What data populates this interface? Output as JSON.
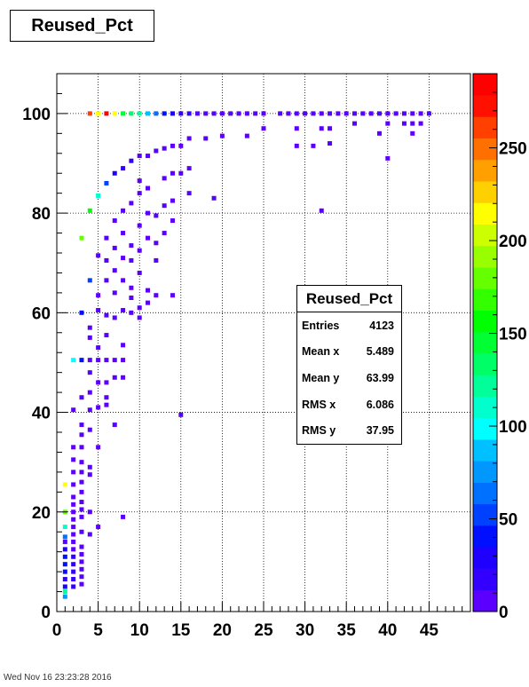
{
  "chart_data": {
    "type": "heatmap",
    "title": "Reused_Pct",
    "xlabel": "",
    "ylabel": "",
    "xlim": [
      0,
      50
    ],
    "ylim": [
      0,
      108
    ],
    "zlim": [
      0,
      290
    ],
    "grid": true,
    "x_ticks": [
      0,
      5,
      10,
      15,
      20,
      25,
      30,
      35,
      40,
      45
    ],
    "y_ticks": [
      0,
      20,
      40,
      60,
      80,
      100
    ],
    "z_ticks": [
      0,
      50,
      100,
      150,
      200,
      250
    ],
    "cells": [
      [
        1,
        3,
        80
      ],
      [
        1,
        4,
        120
      ],
      [
        1,
        5,
        30
      ],
      [
        1,
        6.5,
        20
      ],
      [
        1,
        8,
        35
      ],
      [
        1,
        9.5,
        40
      ],
      [
        1,
        11,
        40
      ],
      [
        1,
        12.5,
        30
      ],
      [
        1,
        14,
        10
      ],
      [
        1,
        15,
        60
      ],
      [
        1,
        17,
        110
      ],
      [
        1,
        20,
        180
      ],
      [
        1,
        25.5,
        220
      ],
      [
        2,
        5,
        15
      ],
      [
        2,
        6.5,
        20
      ],
      [
        2,
        8,
        20
      ],
      [
        2,
        9.5,
        20
      ],
      [
        2,
        11,
        15
      ],
      [
        2,
        12.5,
        10
      ],
      [
        2,
        14,
        10
      ],
      [
        2,
        15.5,
        10
      ],
      [
        2,
        17,
        10
      ],
      [
        2,
        18.5,
        10
      ],
      [
        2,
        20,
        10
      ],
      [
        2,
        21.5,
        10
      ],
      [
        2,
        23,
        10
      ],
      [
        2,
        25.5,
        5
      ],
      [
        2,
        28,
        5
      ],
      [
        2,
        30.5,
        5
      ],
      [
        2,
        33,
        5
      ],
      [
        2,
        40.5,
        5
      ],
      [
        2,
        50.5,
        100
      ],
      [
        3,
        5.5,
        10
      ],
      [
        3,
        7,
        10
      ],
      [
        3,
        8.5,
        10
      ],
      [
        3,
        10,
        10
      ],
      [
        3,
        11.5,
        10
      ],
      [
        3,
        13,
        10
      ],
      [
        3,
        16,
        5
      ],
      [
        3,
        19,
        5
      ],
      [
        3,
        20.5,
        5
      ],
      [
        3,
        22,
        5
      ],
      [
        3,
        24,
        5
      ],
      [
        3,
        26,
        5
      ],
      [
        3,
        28,
        5
      ],
      [
        3,
        30,
        5
      ],
      [
        3,
        33,
        5
      ],
      [
        3,
        35.5,
        5
      ],
      [
        3,
        37.5,
        5
      ],
      [
        3,
        43,
        5
      ],
      [
        3,
        50.5,
        40
      ],
      [
        3,
        60,
        40
      ],
      [
        3,
        75,
        180
      ],
      [
        4,
        15.5,
        5
      ],
      [
        4,
        20,
        5
      ],
      [
        4,
        27.5,
        5
      ],
      [
        4,
        29,
        5
      ],
      [
        4,
        36.5,
        5
      ],
      [
        4,
        40.5,
        5
      ],
      [
        4,
        44,
        5
      ],
      [
        4,
        48,
        5
      ],
      [
        4,
        50.5,
        5
      ],
      [
        4,
        55,
        5
      ],
      [
        4,
        57,
        5
      ],
      [
        4,
        66.5,
        50
      ],
      [
        4,
        80.5,
        160
      ],
      [
        4,
        100,
        260
      ],
      [
        5,
        17,
        5
      ],
      [
        5,
        33,
        5
      ],
      [
        5,
        41,
        5
      ],
      [
        5,
        46,
        5
      ],
      [
        5,
        50.5,
        5
      ],
      [
        5,
        53,
        5
      ],
      [
        5,
        60.5,
        5
      ],
      [
        5,
        63.5,
        5
      ],
      [
        5,
        71.5,
        5
      ],
      [
        5,
        83.5,
        110
      ],
      [
        5,
        100,
        220
      ],
      [
        6,
        41.5,
        5
      ],
      [
        6,
        43,
        5
      ],
      [
        6,
        46,
        5
      ],
      [
        6,
        50.5,
        5
      ],
      [
        6,
        55.5,
        5
      ],
      [
        6,
        59.5,
        5
      ],
      [
        6,
        66.5,
        5
      ],
      [
        6,
        70.5,
        5
      ],
      [
        6,
        75,
        5
      ],
      [
        6,
        86,
        50
      ],
      [
        6,
        100,
        290
      ],
      [
        7,
        37.5,
        5
      ],
      [
        7,
        47,
        5
      ],
      [
        7,
        50.5,
        5
      ],
      [
        7,
        59,
        5
      ],
      [
        7,
        64,
        5
      ],
      [
        7,
        68.5,
        5
      ],
      [
        7,
        73,
        5
      ],
      [
        7,
        78.5,
        5
      ],
      [
        7,
        88,
        30
      ],
      [
        7,
        100,
        220
      ],
      [
        8,
        19,
        5
      ],
      [
        8,
        47,
        5
      ],
      [
        8,
        50.5,
        5
      ],
      [
        8,
        53.5,
        5
      ],
      [
        8,
        60.5,
        5
      ],
      [
        8,
        66.5,
        5
      ],
      [
        8,
        71,
        5
      ],
      [
        8,
        76,
        5
      ],
      [
        8,
        80.5,
        5
      ],
      [
        8,
        89,
        20
      ],
      [
        8,
        100,
        150
      ],
      [
        9,
        60,
        5
      ],
      [
        9,
        63,
        5
      ],
      [
        9,
        65,
        5
      ],
      [
        9,
        70.5,
        5
      ],
      [
        9,
        73.5,
        5
      ],
      [
        9,
        82,
        5
      ],
      [
        9,
        90.5,
        20
      ],
      [
        9,
        100,
        130
      ],
      [
        10,
        59,
        5
      ],
      [
        10,
        61,
        5
      ],
      [
        10,
        68,
        5
      ],
      [
        10,
        72.5,
        5
      ],
      [
        10,
        77.5,
        5
      ],
      [
        10,
        84,
        5
      ],
      [
        10,
        86.5,
        5
      ],
      [
        10,
        91.5,
        10
      ],
      [
        10,
        100,
        120
      ],
      [
        11,
        62,
        5
      ],
      [
        11,
        64.5,
        5
      ],
      [
        11,
        75,
        5
      ],
      [
        11,
        80,
        5
      ],
      [
        11,
        85,
        5
      ],
      [
        11,
        91.5,
        5
      ],
      [
        11,
        100,
        90
      ],
      [
        12,
        63.5,
        5
      ],
      [
        12,
        70.5,
        5
      ],
      [
        12,
        74,
        5
      ],
      [
        12,
        79.5,
        5
      ],
      [
        12,
        92.5,
        5
      ],
      [
        12,
        100,
        60
      ],
      [
        13,
        76,
        5
      ],
      [
        13,
        81.5,
        5
      ],
      [
        13,
        87,
        5
      ],
      [
        13,
        93,
        5
      ],
      [
        13,
        100,
        40
      ],
      [
        14,
        63.5,
        5
      ],
      [
        14,
        78.5,
        5
      ],
      [
        14,
        82.5,
        5
      ],
      [
        14,
        88,
        5
      ],
      [
        14,
        93.5,
        5
      ],
      [
        14,
        100,
        30
      ],
      [
        15,
        39.5,
        5
      ],
      [
        15,
        88,
        5
      ],
      [
        15,
        93.5,
        5
      ],
      [
        15,
        100,
        20
      ],
      [
        16,
        84,
        5
      ],
      [
        16,
        89,
        5
      ],
      [
        16,
        95,
        5
      ],
      [
        16,
        100,
        15
      ],
      [
        17,
        100,
        10
      ],
      [
        18,
        95,
        5
      ],
      [
        18,
        100,
        10
      ],
      [
        19,
        83,
        5
      ],
      [
        19,
        100,
        10
      ],
      [
        20,
        95.5,
        5
      ],
      [
        20,
        100,
        10
      ],
      [
        21,
        100,
        10
      ],
      [
        22,
        100,
        5
      ],
      [
        23,
        95.5,
        5
      ],
      [
        23,
        100,
        5
      ],
      [
        24,
        100,
        5
      ],
      [
        25,
        97,
        5
      ],
      [
        25,
        100,
        5
      ],
      [
        27,
        100,
        5
      ],
      [
        28,
        100,
        5
      ],
      [
        29,
        93.5,
        5
      ],
      [
        29,
        97,
        5
      ],
      [
        29,
        100,
        5
      ],
      [
        30,
        100,
        5
      ],
      [
        31,
        93.5,
        5
      ],
      [
        31,
        100,
        5
      ],
      [
        32,
        80.5,
        5
      ],
      [
        32,
        97,
        5
      ],
      [
        32,
        100,
        5
      ],
      [
        33,
        94,
        5
      ],
      [
        33,
        97,
        5
      ],
      [
        33,
        100,
        5
      ],
      [
        34,
        100,
        5
      ],
      [
        35,
        100,
        5
      ],
      [
        36,
        98,
        5
      ],
      [
        36,
        100,
        5
      ],
      [
        37,
        100,
        5
      ],
      [
        38,
        100,
        5
      ],
      [
        39,
        96,
        5
      ],
      [
        39,
        100,
        5
      ],
      [
        40,
        91,
        5
      ],
      [
        40,
        98,
        5
      ],
      [
        40,
        100,
        5
      ],
      [
        41,
        100,
        5
      ],
      [
        42,
        98,
        5
      ],
      [
        42,
        100,
        5
      ],
      [
        43,
        96,
        5
      ],
      [
        43,
        98,
        5
      ],
      [
        43,
        100,
        5
      ],
      [
        44,
        98,
        5
      ],
      [
        44,
        100,
        5
      ],
      [
        45,
        100,
        5
      ]
    ],
    "palette": [
      "#5b00ff",
      "#3300ff",
      "#1f00ff",
      "#0010ff",
      "#0040ff",
      "#0070ff",
      "#0098ff",
      "#00c0ff",
      "#00ffff",
      "#00ffcc",
      "#00ff99",
      "#00ff66",
      "#00ff33",
      "#00ff00",
      "#33ff00",
      "#66ff00",
      "#99ff00",
      "#ccff00",
      "#ffff00",
      "#ffd000",
      "#ffa000",
      "#ff7000",
      "#ff4000",
      "#ff1000",
      "#ff0000"
    ]
  },
  "stats": {
    "title": "Reused_Pct",
    "rows": [
      {
        "label": "Entries",
        "value": "4123"
      },
      {
        "label": "Mean x",
        "value": "5.489"
      },
      {
        "label": "Mean y",
        "value": "63.99"
      },
      {
        "label": "RMS x",
        "value": "6.086"
      },
      {
        "label": "RMS y",
        "value": "37.95"
      }
    ]
  },
  "footer": "Wed Nov 16 23:23:28 2016"
}
